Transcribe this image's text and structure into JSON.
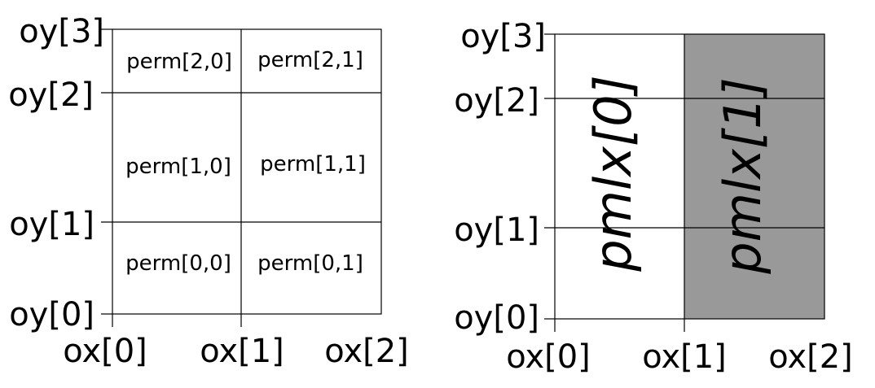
{
  "left_panel": {
    "y_labels": [
      "oy[0]",
      "oy[1]",
      "oy[2]",
      "oy[3]"
    ],
    "x_labels": [
      "ox[0]",
      "ox[1]",
      "ox[2]"
    ],
    "cells": {
      "r2c0": "perm[2,0]",
      "r2c1": "perm[2,1]",
      "r1c0": "perm[1,0]",
      "r1c1": "perm[1,1]",
      "r0c0": "perm[0,0]",
      "r0c1": "perm[0,1]"
    }
  },
  "right_panel": {
    "y_labels": [
      "oy[0]",
      "oy[1]",
      "oy[2]",
      "oy[3]"
    ],
    "x_labels": [
      "ox[0]",
      "ox[1]",
      "ox[2]"
    ],
    "columns": [
      "pmlx[0]",
      "pmlx[1]"
    ],
    "shaded_fill": "#999999"
  }
}
